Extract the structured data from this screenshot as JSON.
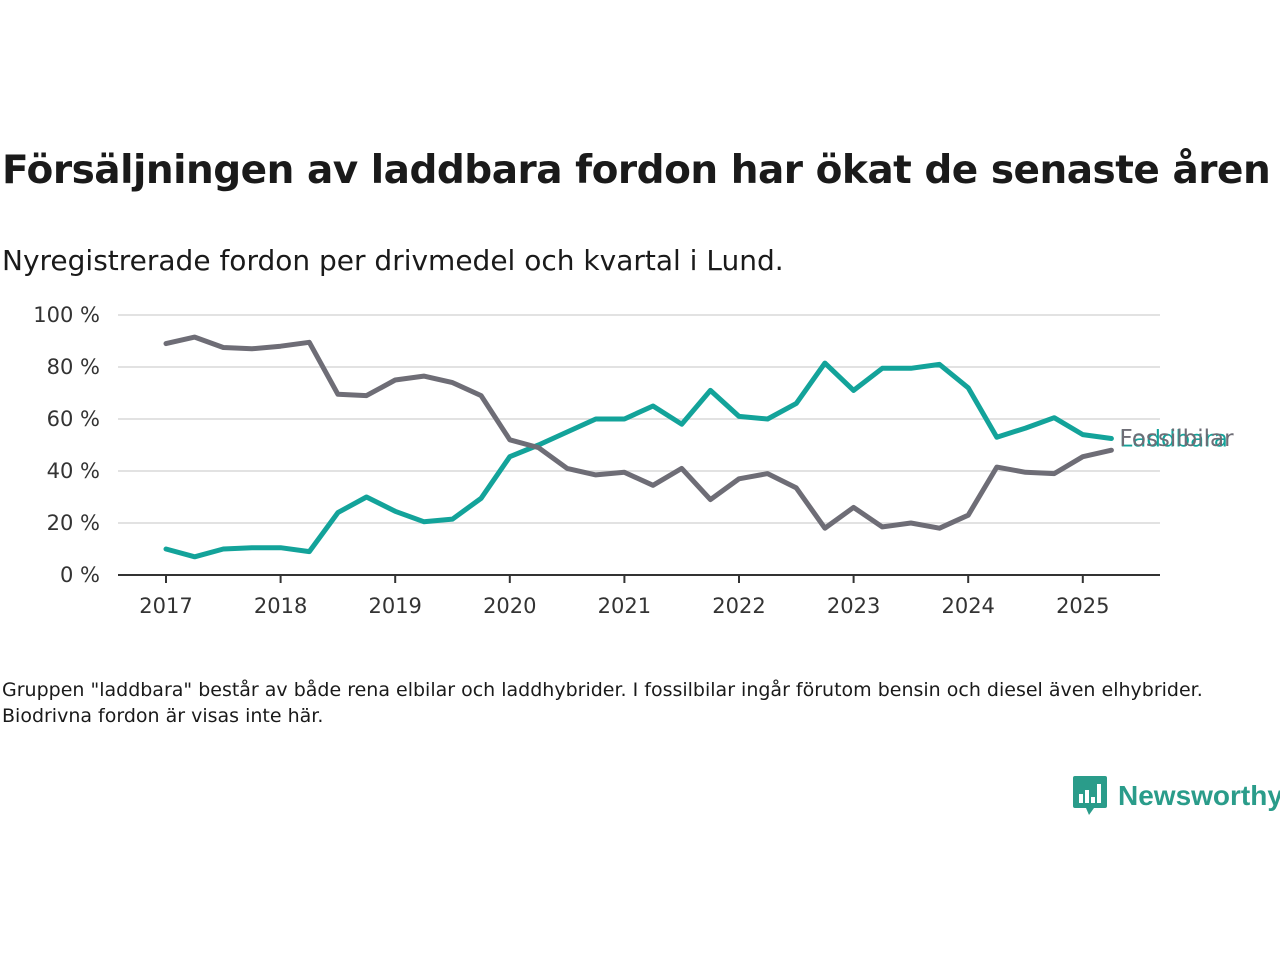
{
  "title": "Försäljningen av laddbara fordon har ökat de senaste åren",
  "subtitle": "Nyregistrerade fordon per drivmedel och kvartal i Lund.",
  "note": "Gruppen \"laddbara\" består av både rena elbilar och laddhybrider. I fossilbilar ingår förutom bensin och diesel även elhybrider. Biodrivna fordon är visas inte här.",
  "brand": {
    "name": "Newsworthy",
    "icon": "newsworthy-logo-icon",
    "color": "#2a9c8a"
  },
  "chart_data": {
    "type": "line",
    "x_unit": "quarter",
    "x": [
      "2017 Q1",
      "2017 Q2",
      "2017 Q3",
      "2017 Q4",
      "2018 Q1",
      "2018 Q2",
      "2018 Q3",
      "2018 Q4",
      "2019 Q1",
      "2019 Q2",
      "2019 Q3",
      "2019 Q4",
      "2020 Q1",
      "2020 Q2",
      "2020 Q3",
      "2020 Q4",
      "2021 Q1",
      "2021 Q2",
      "2021 Q3",
      "2021 Q4",
      "2022 Q1",
      "2022 Q2",
      "2022 Q3",
      "2022 Q4",
      "2023 Q1",
      "2023 Q2",
      "2023 Q3",
      "2023 Q4",
      "2024 Q1",
      "2024 Q2",
      "2024 Q3",
      "2024 Q4",
      "2025 Q1",
      "2025 Q2"
    ],
    "series": [
      {
        "name": "Fossilbilar",
        "color": "#6e6d76",
        "values": [
          89,
          91.5,
          87.5,
          87,
          88,
          89.5,
          69.5,
          69,
          75,
          76.5,
          74,
          69,
          52,
          49,
          41,
          38.5,
          39.5,
          34.5,
          41,
          29,
          37,
          39,
          33.5,
          18,
          26,
          18.5,
          20,
          18,
          23,
          41.5,
          39.5,
          39,
          45.5,
          48
        ]
      },
      {
        "name": "Laddbara",
        "color": "#13a39a",
        "values": [
          10,
          7,
          10,
          10.5,
          10.5,
          9,
          24,
          30,
          24.5,
          20.5,
          21.5,
          29.5,
          45.5,
          50,
          55,
          60,
          60,
          65,
          58,
          71,
          61,
          60,
          66,
          81.5,
          71,
          79.5,
          79.5,
          81,
          72,
          53,
          56.5,
          60.5,
          54,
          52.5
        ]
      }
    ],
    "xticks": [
      "2017",
      "2018",
      "2019",
      "2020",
      "2021",
      "2022",
      "2023",
      "2024",
      "2025"
    ],
    "ytick_values": [
      0,
      20,
      40,
      60,
      80,
      100
    ],
    "ytick_labels": [
      "0 %",
      "20 %",
      "40 %",
      "60 %",
      "80 %",
      "100 %"
    ],
    "ylim": [
      0,
      100
    ],
    "grid": "horizontal",
    "legend": "direct labels at line ends"
  }
}
